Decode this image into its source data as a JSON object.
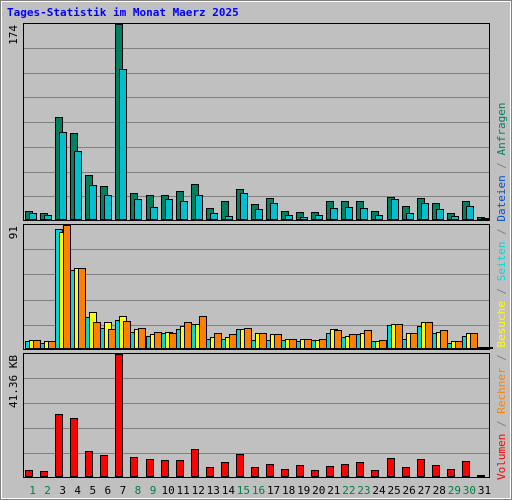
{
  "chart_data": {
    "type": "bar",
    "title": "Tages-Statistik im Monat Maerz 2025",
    "categories": [
      "1",
      "2",
      "3",
      "4",
      "5",
      "6",
      "7",
      "8",
      "9",
      "10",
      "11",
      "12",
      "13",
      "14",
      "15",
      "16",
      "17",
      "18",
      "19",
      "20",
      "21",
      "22",
      "23",
      "24",
      "25",
      "26",
      "27",
      "28",
      "29",
      "30",
      "31"
    ],
    "weekend_days": [
      "1",
      "2",
      "8",
      "9",
      "15",
      "16",
      "22",
      "23",
      "29",
      "30"
    ],
    "colors": {
      "title": "#0000ff",
      "weekend_label": "#008040",
      "weekday_label": "#000000",
      "anfragen": "#008060",
      "dateien": "#00c0d0",
      "seiten": "#00d8d8",
      "besuche": "#ffff00",
      "rechner": "#ff8000",
      "volumen": "#ff0000",
      "grid": "#808080",
      "plot_bg": "#c0c0c0"
    },
    "panels": [
      {
        "name": "hits",
        "max_label": "174",
        "ymax": 174,
        "series": [
          {
            "name": "Anfragen",
            "values": [
              7,
              5,
              91,
              77,
              39,
              29,
              174,
              23,
              21,
              21,
              25,
              31,
              10,
              16,
              27,
              13,
              19,
              7,
              6,
              6,
              16,
              16,
              16,
              7,
              20,
              12,
              19,
              14,
              5,
              16,
              2
            ]
          },
          {
            "name": "Dateien",
            "values": [
              5,
              4,
              78,
              61,
              30,
              21,
              134,
              18,
              11,
              18,
              16,
              21,
              5,
              3,
              23,
              9,
              14,
              4,
              2,
              4,
              10,
              11,
              10,
              4,
              18,
              5,
              14,
              9,
              3,
              12,
              1
            ]
          }
        ]
      },
      {
        "name": "visits",
        "max_label": "91",
        "ymax": 91,
        "series": [
          {
            "name": "Seiten",
            "values": [
              5,
              4,
              88,
              58,
              23,
              15,
              21,
              12,
              9,
              11,
              14,
              18,
              7,
              7,
              14,
              6,
              6,
              6,
              5,
              6,
              11,
              8,
              10,
              5,
              17,
              7,
              16,
              11,
              4,
              9,
              1
            ]
          },
          {
            "name": "Besuche",
            "values": [
              6,
              5,
              86,
              59,
              27,
              19,
              24,
              14,
              10,
              12,
              16,
              18,
              8,
              8,
              14,
              11,
              10,
              7,
              7,
              6,
              14,
              9,
              11,
              5,
              18,
              11,
              19,
              12,
              5,
              11,
              1
            ]
          },
          {
            "name": "Rechner",
            "values": [
              6,
              5,
              91,
              59,
              19,
              14,
              20,
              15,
              12,
              11,
              19,
              24,
              11,
              10,
              15,
              11,
              10,
              7,
              7,
              7,
              13,
              10,
              13,
              6,
              18,
              11,
              19,
              13,
              5,
              11,
              1
            ]
          }
        ]
      },
      {
        "name": "volume",
        "max_label": "41.36 KB",
        "ymax": 41.36,
        "series": [
          {
            "name": "Volumen",
            "values": [
              2.1,
              1.7,
              21.0,
              19.5,
              8.6,
              7.2,
              41.36,
              6.3,
              5.6,
              5.3,
              5.3,
              9.1,
              3.2,
              4.7,
              7.4,
              3.0,
              4.0,
              2.5,
              3.6,
              2.0,
              3.3,
              4.1,
              4.7,
              1.9,
              6.0,
              3.1,
              5.6,
              3.8,
              2.4,
              5.1,
              0.3
            ]
          }
        ]
      }
    ],
    "right_labels": [
      {
        "text": "Volumen",
        "color": "#ff0000"
      },
      {
        "text": " / ",
        "color": "#808080"
      },
      {
        "text": "Rechner",
        "color": "#ff8000"
      },
      {
        "text": " / ",
        "color": "#808080"
      },
      {
        "text": "Besuche",
        "color": "#ffff00"
      },
      {
        "text": " / ",
        "color": "#808080"
      },
      {
        "text": "Seiten",
        "color": "#00d8d8"
      },
      {
        "text": " / ",
        "color": "#808080"
      },
      {
        "text": "Dateien",
        "color": "#0050d0"
      },
      {
        "text": " / ",
        "color": "#808080"
      },
      {
        "text": "Anfragen",
        "color": "#008060"
      }
    ]
  }
}
